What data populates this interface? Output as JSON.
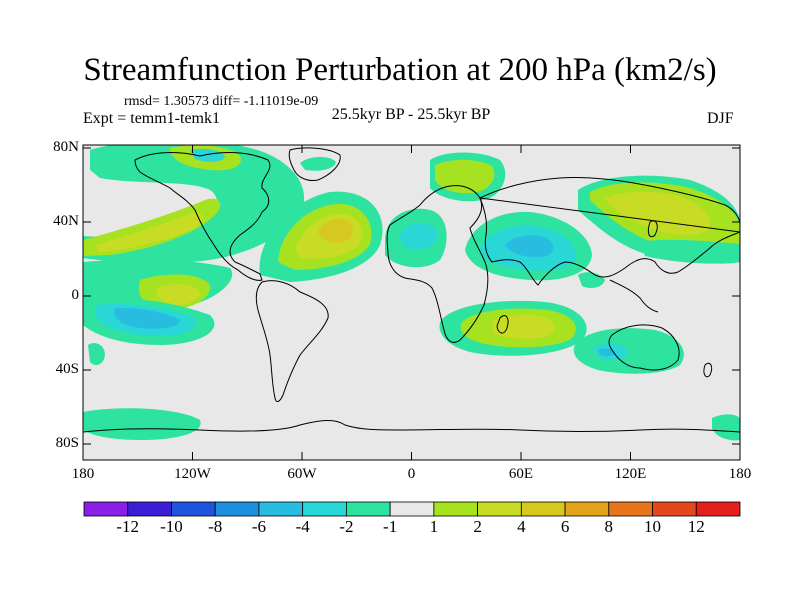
{
  "title": "Streamfunction Perturbation at 200 hPa (km2/s)",
  "stats": "rmsd= 1.30573 diff= -1.11019e-09",
  "experiment": "Expt = temm1-temk1",
  "period": "25.5kyr BP - 25.5kyr BP",
  "season": "DJF",
  "lat_ticks": [
    {
      "lat": 80,
      "label": "80N"
    },
    {
      "lat": 40,
      "label": "40N"
    },
    {
      "lat": 0,
      "label": "0"
    },
    {
      "lat": -40,
      "label": "40S"
    },
    {
      "lat": -80,
      "label": "80S"
    }
  ],
  "lon_ticks": [
    {
      "lon": -180,
      "label": "180"
    },
    {
      "lon": -120,
      "label": "120W"
    },
    {
      "lon": -60,
      "label": "60W"
    },
    {
      "lon": 0,
      "label": "0"
    },
    {
      "lon": 60,
      "label": "60E"
    },
    {
      "lon": 120,
      "label": "120E"
    },
    {
      "lon": 180,
      "label": "180"
    }
  ],
  "colorbar": {
    "colors": [
      "#8a1fe6",
      "#3a1fd6",
      "#1f55dd",
      "#1c8fe0",
      "#28bde0",
      "#29d7d7",
      "#2ee3a0",
      "#e8e8e8",
      "#a6e21f",
      "#c8dc26",
      "#d6c81e",
      "#e3a41c",
      "#e6751c",
      "#e5471c",
      "#e41f1c"
    ],
    "labels": [
      "-12",
      "-10",
      "-8",
      "-6",
      "-4",
      "-2",
      "-1",
      "1",
      "2",
      "4",
      "6",
      "8",
      "10",
      "12"
    ]
  }
}
